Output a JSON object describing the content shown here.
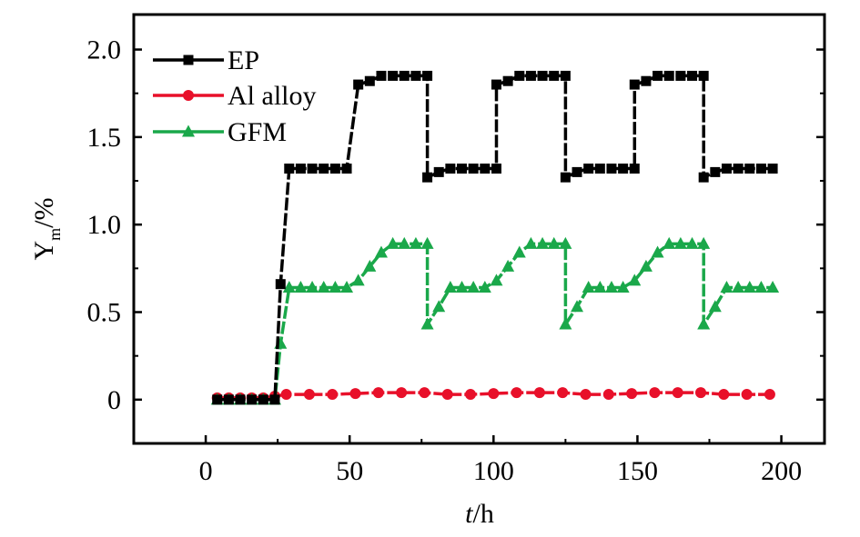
{
  "chart_data": {
    "type": "line",
    "title": "",
    "xlabel": {
      "var": "t",
      "unit": "/h"
    },
    "ylabel": {
      "var": "Y",
      "sub": "m",
      "unit": "/%"
    },
    "xlim": [
      -25,
      215
    ],
    "ylim": [
      -0.25,
      2.2
    ],
    "xticks": [
      0,
      50,
      100,
      150,
      200
    ],
    "xtick_labels": [
      "0",
      "50",
      "100",
      "150",
      "200"
    ],
    "yticks": [
      0,
      0.5,
      1.0,
      1.5,
      2.0
    ],
    "ytick_labels": [
      "0",
      "0.5",
      "1.0",
      "1.5",
      "2.0"
    ],
    "grid": false,
    "legend_position": "top-left",
    "series": [
      {
        "name": "EP",
        "color": "#000000",
        "marker": "square",
        "x": [
          4,
          8,
          12,
          16,
          20,
          24,
          26,
          29,
          33,
          37,
          41,
          45,
          49,
          53,
          57,
          61,
          65,
          69,
          73,
          77,
          77,
          81,
          85,
          89,
          93,
          97,
          101,
          101,
          105,
          109,
          113,
          117,
          121,
          125,
          125,
          129,
          133,
          137,
          141,
          145,
          149,
          149,
          153,
          157,
          161,
          165,
          169,
          173,
          173,
          177,
          181,
          185,
          189,
          193,
          197
        ],
        "y": [
          0,
          0,
          0,
          0,
          0,
          0,
          0.66,
          1.32,
          1.32,
          1.32,
          1.32,
          1.32,
          1.32,
          1.8,
          1.82,
          1.85,
          1.85,
          1.85,
          1.85,
          1.85,
          1.27,
          1.3,
          1.32,
          1.32,
          1.32,
          1.32,
          1.32,
          1.8,
          1.82,
          1.85,
          1.85,
          1.85,
          1.85,
          1.85,
          1.27,
          1.3,
          1.32,
          1.32,
          1.32,
          1.32,
          1.32,
          1.8,
          1.82,
          1.85,
          1.85,
          1.85,
          1.85,
          1.85,
          1.27,
          1.3,
          1.32,
          1.32,
          1.32,
          1.32,
          1.32
        ]
      },
      {
        "name": "Al alloy",
        "color": "#e8102a",
        "marker": "circle",
        "x": [
          4,
          8,
          12,
          16,
          20,
          24,
          28,
          36,
          44,
          52,
          60,
          68,
          76,
          84,
          92,
          100,
          108,
          116,
          124,
          132,
          140,
          148,
          156,
          164,
          172,
          180,
          188,
          196
        ],
        "y": [
          0.01,
          0.01,
          0.01,
          0.01,
          0.01,
          0.02,
          0.03,
          0.03,
          0.03,
          0.035,
          0.04,
          0.04,
          0.04,
          0.03,
          0.03,
          0.035,
          0.04,
          0.04,
          0.04,
          0.03,
          0.03,
          0.035,
          0.04,
          0.04,
          0.04,
          0.03,
          0.03,
          0.03
        ]
      },
      {
        "name": "GFM",
        "color": "#1aa84a",
        "marker": "triangle",
        "x": [
          4,
          8,
          12,
          16,
          20,
          24,
          26,
          29,
          33,
          37,
          41,
          45,
          49,
          53,
          57,
          61,
          65,
          69,
          73,
          77,
          77,
          81,
          85,
          89,
          93,
          97,
          101,
          105,
          109,
          113,
          117,
          121,
          125,
          125,
          129,
          133,
          137,
          141,
          145,
          149,
          153,
          157,
          161,
          165,
          169,
          173,
          173,
          177,
          181,
          185,
          189,
          193,
          197
        ],
        "y": [
          0,
          0,
          0,
          0,
          0,
          0,
          0.32,
          0.64,
          0.64,
          0.64,
          0.64,
          0.64,
          0.64,
          0.68,
          0.76,
          0.84,
          0.89,
          0.89,
          0.89,
          0.89,
          0.43,
          0.53,
          0.64,
          0.64,
          0.64,
          0.64,
          0.68,
          0.76,
          0.84,
          0.89,
          0.89,
          0.89,
          0.89,
          0.43,
          0.53,
          0.64,
          0.64,
          0.64,
          0.64,
          0.68,
          0.76,
          0.84,
          0.89,
          0.89,
          0.89,
          0.89,
          0.43,
          0.53,
          0.64,
          0.64,
          0.64,
          0.64,
          0.64
        ]
      }
    ]
  }
}
